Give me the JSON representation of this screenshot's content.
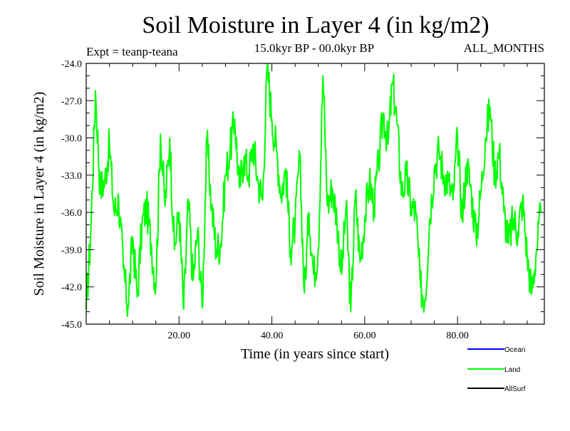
{
  "chart_data": {
    "type": "line",
    "title": "Soil Moisture in Layer 4 (in kg/m2)",
    "subtitle_left": "Expt = teanp-teana",
    "subtitle_center": "15.0kyr BP - 00.0kyr BP",
    "subtitle_right": "ALL_MONTHS",
    "xlabel": "Time (in years since start)",
    "ylabel": "Soil Moisture in Layer 4 (in kg/m2)",
    "xlim": [
      0.0,
      98.7
    ],
    "ylim": [
      -45.0,
      -24.0
    ],
    "x_ticks": [
      20.0,
      40.0,
      60.0,
      80.0
    ],
    "x_tick_labels": [
      "20.00",
      "40.00",
      "60.00",
      "80.00"
    ],
    "y_ticks": [
      -24.0,
      -27.0,
      -30.0,
      -33.0,
      -36.0,
      -39.0,
      -42.0,
      -45.0
    ],
    "y_tick_labels": [
      "-24.0",
      "-27.0",
      "-30.0",
      "-33.0",
      "-36.0",
      "-39.0",
      "-42.0",
      "-45.0"
    ],
    "legend": [
      {
        "name": "Ocean",
        "color": "#0000ff"
      },
      {
        "name": "Land",
        "color": "#00ff00"
      },
      {
        "name": "AllSurf",
        "color": "#000000"
      }
    ],
    "series": [
      {
        "name": "Land",
        "color": "#00ff00",
        "x": [
          0,
          1,
          2,
          3,
          4,
          5,
          6,
          7,
          8,
          9,
          10,
          11,
          12,
          13,
          14,
          15,
          16,
          17,
          18,
          19,
          20,
          21,
          22,
          23,
          24,
          25,
          26,
          27,
          28,
          29,
          30,
          31,
          32,
          33,
          34,
          35,
          36,
          37,
          38,
          39,
          40,
          41,
          42,
          43,
          44,
          45,
          46,
          47,
          48,
          49,
          50,
          51,
          52,
          53,
          54,
          55,
          56,
          57,
          58,
          59,
          60,
          61,
          62,
          63,
          64,
          65,
          66,
          67,
          68,
          69,
          70,
          71,
          72,
          73,
          74,
          75,
          76,
          77,
          78,
          79,
          80,
          81,
          82,
          83,
          84,
          85,
          86,
          87,
          88,
          89,
          90,
          91,
          92,
          93,
          94,
          95,
          96,
          97,
          98
        ],
        "values": [
          -43.8,
          -37.5,
          -26.2,
          -34.0,
          -33.5,
          -30.5,
          -36.0,
          -35.0,
          -40.5,
          -43.7,
          -38.0,
          -42.8,
          -37.0,
          -35.5,
          -38.5,
          -42.0,
          -29.7,
          -35.5,
          -30.0,
          -39.0,
          -36.0,
          -43.8,
          -35.0,
          -41.5,
          -37.5,
          -43.7,
          -30.0,
          -35.5,
          -39.0,
          -38.5,
          -33.0,
          -31.0,
          -28.5,
          -34.0,
          -31.5,
          -33.0,
          -30.5,
          -33.5,
          -35.0,
          -24.1,
          -28.5,
          -31.0,
          -34.5,
          -32.5,
          -39.0,
          -37.0,
          -31.5,
          -42.5,
          -36.0,
          -41.0,
          -39.0,
          -25.0,
          -35.5,
          -34.0,
          -36.5,
          -41.0,
          -35.5,
          -44.0,
          -34.5,
          -40.0,
          -36.5,
          -33.5,
          -35.5,
          -32.0,
          -28.0,
          -30.5,
          -25.5,
          -29.0,
          -34.5,
          -33.0,
          -35.5,
          -36.0,
          -42.0,
          -43.0,
          -36.5,
          -32.5,
          -31.0,
          -33.0,
          -33.5,
          -35.0,
          -30.0,
          -36.5,
          -32.0,
          -34.5,
          -38.0,
          -34.5,
          -30.0,
          -27.5,
          -33.0,
          -31.0,
          -36.0,
          -38.5,
          -36.5,
          -37.5,
          -35.0,
          -39.5,
          -42.5,
          -39.0,
          -36.0
        ]
      }
    ]
  }
}
